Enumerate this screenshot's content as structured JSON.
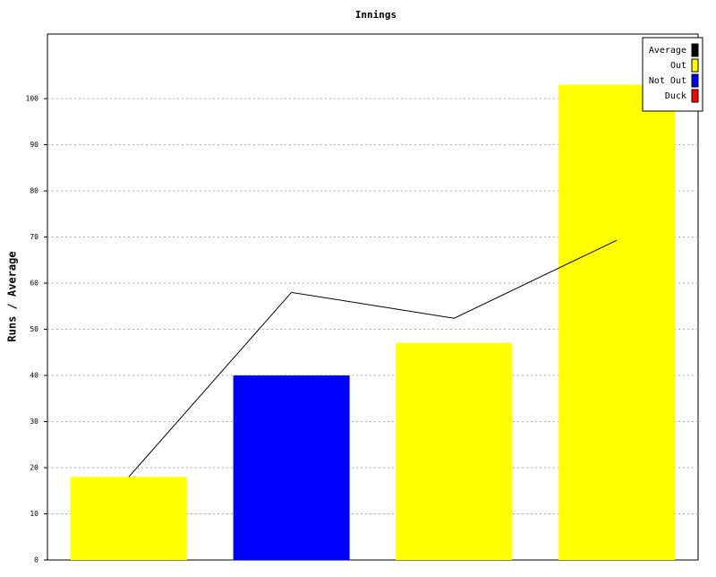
{
  "chart_data": {
    "type": "bar",
    "title": "Innings",
    "y_label": "Runs / Average",
    "categories": [
      null,
      null,
      null,
      null
    ],
    "series": [
      {
        "name": "Average",
        "color": "#000000",
        "type": "line",
        "values": [
          18,
          58,
          52.4,
          69.3
        ]
      },
      {
        "name": "Out",
        "color": "#ffff00",
        "type": "bar",
        "values": [
          18,
          null,
          47,
          103
        ]
      },
      {
        "name": "Not Out",
        "color": "#0000ff",
        "type": "bar",
        "values": [
          null,
          40,
          null,
          null
        ]
      },
      {
        "name": "Duck",
        "color": "#ff0000",
        "type": "bar",
        "values": [
          null,
          null,
          null,
          null
        ]
      }
    ],
    "ylim": [
      0,
      114
    ],
    "yticks": [
      0,
      10,
      20,
      30,
      40,
      50,
      60,
      70,
      80,
      90,
      100
    ],
    "grid": true,
    "legend": "top-right"
  }
}
